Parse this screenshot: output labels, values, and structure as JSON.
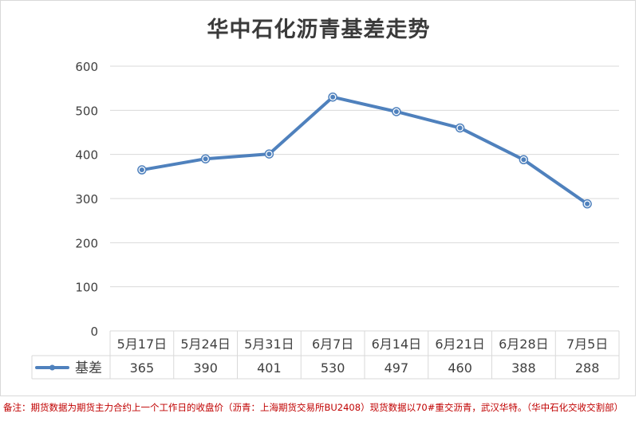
{
  "chart_data": {
    "type": "line",
    "title": "华中石化沥青基差走势",
    "categories": [
      "5月17日",
      "5月24日",
      "5月31日",
      "6月7日",
      "6月14日",
      "6月21日",
      "6月28日",
      "7月5日"
    ],
    "series": [
      {
        "name": "基差",
        "values": [
          365,
          390,
          401,
          530,
          497,
          460,
          388,
          288
        ],
        "color": "#4f81bd"
      }
    ],
    "ylim": [
      0,
      600
    ],
    "yticks": [
      0,
      100,
      200,
      300,
      400,
      500,
      600
    ],
    "grid": true,
    "legend": "data-table-left",
    "xlabel": "",
    "ylabel": ""
  },
  "note": "备注：期货数据为期货主力合约上一个工作日的收盘价（沥青：上海期货交易所BU2408）现货数据以70#重交沥青，武汉华特。（华中石化交收交割部）",
  "colors": {
    "line": "#4f81bd",
    "note": "#c00000",
    "grid": "#d9d9d9",
    "text": "#404040"
  }
}
